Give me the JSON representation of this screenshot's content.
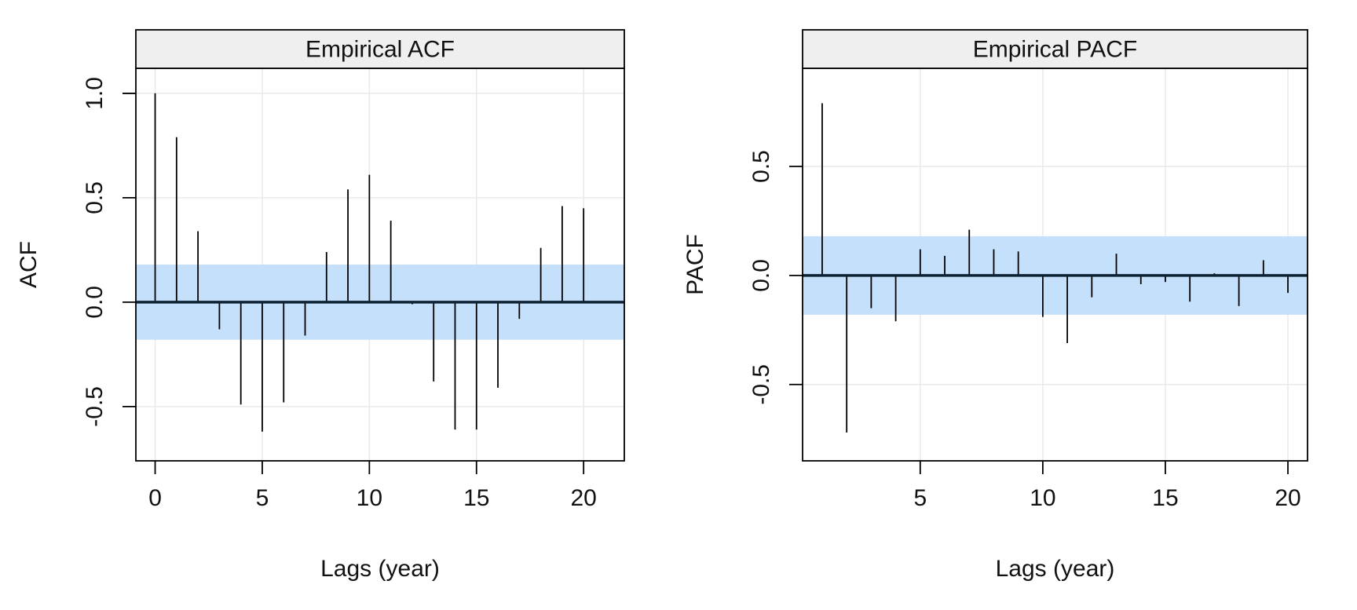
{
  "chart_data": [
    {
      "type": "bar",
      "title": "Empirical ACF",
      "xlabel": "Lags (year)",
      "ylabel": "ACF",
      "xlim": [
        -0.9,
        21.9
      ],
      "ylim": [
        -0.76,
        1.12
      ],
      "x_ticks": [
        0,
        5,
        10,
        15,
        20
      ],
      "y_ticks": [
        -0.5,
        0.0,
        0.5,
        1.0
      ],
      "y_tick_labels": [
        "-0.5",
        "0.0",
        "0.5",
        "1.0"
      ],
      "grid": true,
      "confidence_band": [
        -0.18,
        0.18
      ],
      "lags": [
        0,
        1,
        2,
        3,
        4,
        5,
        6,
        7,
        8,
        9,
        10,
        11,
        12,
        13,
        14,
        15,
        16,
        17,
        18,
        19,
        20
      ],
      "values": [
        1.0,
        0.79,
        0.34,
        -0.13,
        -0.49,
        -0.62,
        -0.48,
        -0.16,
        0.24,
        0.54,
        0.61,
        0.39,
        -0.01,
        -0.38,
        -0.61,
        -0.61,
        -0.41,
        -0.08,
        0.26,
        0.46,
        0.45
      ]
    },
    {
      "type": "bar",
      "title": "Empirical PACF",
      "xlabel": "Lags (year)",
      "ylabel": "PACF",
      "xlim": [
        0.2,
        20.8
      ],
      "ylim": [
        -0.85,
        0.95
      ],
      "x_ticks": [
        5,
        10,
        15,
        20
      ],
      "y_ticks": [
        -0.5,
        0.0,
        0.5
      ],
      "y_tick_labels": [
        "-0.5",
        "0.0",
        "0.5"
      ],
      "grid": true,
      "confidence_band": [
        -0.18,
        0.18
      ],
      "lags": [
        1,
        2,
        3,
        4,
        5,
        6,
        7,
        8,
        9,
        10,
        11,
        12,
        13,
        14,
        15,
        16,
        17,
        18,
        19,
        20
      ],
      "values": [
        0.79,
        -0.72,
        -0.15,
        -0.21,
        0.12,
        0.09,
        0.21,
        0.12,
        0.11,
        -0.19,
        -0.31,
        -0.1,
        0.1,
        -0.04,
        -0.03,
        -0.12,
        0.01,
        -0.14,
        0.07,
        -0.08
      ]
    }
  ],
  "colors": {
    "band": "#c5e0fb",
    "strip": "#efefef",
    "grid": "#e9e9e9",
    "zero_line": "#0d2233",
    "spike": "#000000",
    "frame": "#000000"
  }
}
